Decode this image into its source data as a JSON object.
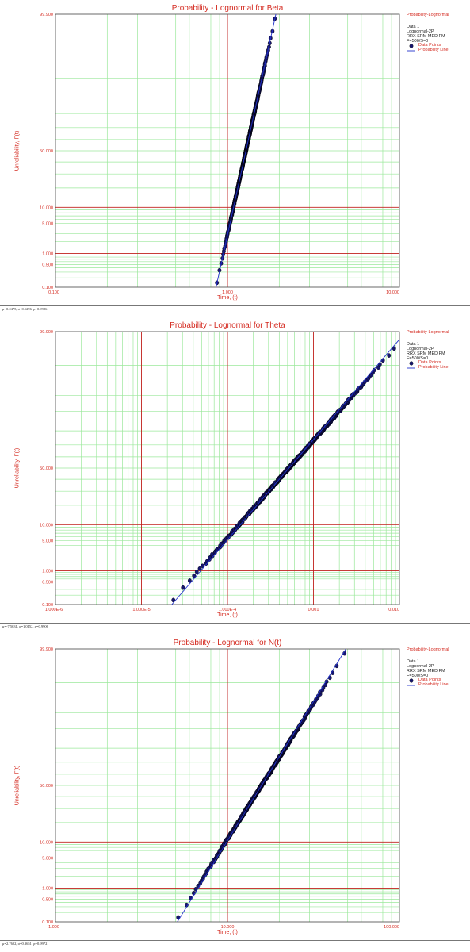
{
  "legend": {
    "title": "Probability-Lognormal",
    "dataset": "Data 1",
    "lines": [
      "Lognormal-2P",
      "RRX SRM MED FM",
      "F=500/S=0"
    ],
    "points_label": "Data Points",
    "line_label": "Probability Line"
  },
  "colors": {
    "grid_minor": "#9be89b",
    "grid_major": "#c0201c",
    "text": "#d42a20",
    "points": "#161670",
    "points_edge": "#000000",
    "fit_line": "#2233cc"
  },
  "chart_data": [
    {
      "type": "scatter",
      "title": "Probability - Lognormal for Beta",
      "xlabel": "Time, (t)",
      "ylabel": "Unreliability, F(t)",
      "x_scale": "log",
      "y_scale": "lognormal-probability",
      "xlim": [
        0.1,
        10
      ],
      "ylim": [
        0.1,
        99.9
      ],
      "x_ticks": [
        "0.100",
        "1.000",
        "10.000"
      ],
      "y_ticks": [
        "0.100",
        "0.500",
        "1.000",
        "5.000",
        "10.000",
        "50.000",
        "99.900"
      ],
      "fit": {
        "mu": 0.2475,
        "sigma": 0.1296,
        "rho": 0.9986
      },
      "n_points": 500,
      "footer": "μ=0.2475, σ=0.1296, ρ=0.9986"
    },
    {
      "type": "scatter",
      "title": "Probability - Lognormal for Theta",
      "xlabel": "Time, (t)",
      "ylabel": "Unreliability, F(t)",
      "x_scale": "log",
      "y_scale": "lognormal-probability",
      "xlim": [
        1e-06,
        0.01
      ],
      "ylim": [
        0.1,
        99.9
      ],
      "x_ticks": [
        "1.000E-6",
        "1.000E-5",
        "1.000E-4",
        "0.001",
        "0.010"
      ],
      "y_ticks": [
        "0.100",
        "0.500",
        "1.000",
        "5.000",
        "10.000",
        "50.000",
        "99.900"
      ],
      "fit": {
        "mu": -7.5631,
        "sigma": 1.0152,
        "rho": 0.9906
      },
      "n_points": 500,
      "footer": "μ=-7.5631, σ=1.0152, ρ=0.9906"
    },
    {
      "type": "scatter",
      "title": "Probability - Lognormal for N(t)",
      "xlabel": "Time, (t)",
      "ylabel": "Unreliability, F(t)",
      "x_scale": "log",
      "y_scale": "lognormal-probability",
      "xlim": [
        1,
        100
      ],
      "ylim": [
        0.1,
        99.9
      ],
      "x_ticks": [
        "1.000",
        "10.000",
        "100.000"
      ],
      "y_ticks": [
        "0.100",
        "0.500",
        "1.000",
        "5.000",
        "10.000",
        "50.000",
        "99.900"
      ],
      "fit": {
        "mu": 2.7602,
        "sigma": 0.3651,
        "rho": 0.9972
      },
      "n_points": 500,
      "footer": "μ=2.7602, σ=0.3651, ρ=0.9972"
    }
  ]
}
